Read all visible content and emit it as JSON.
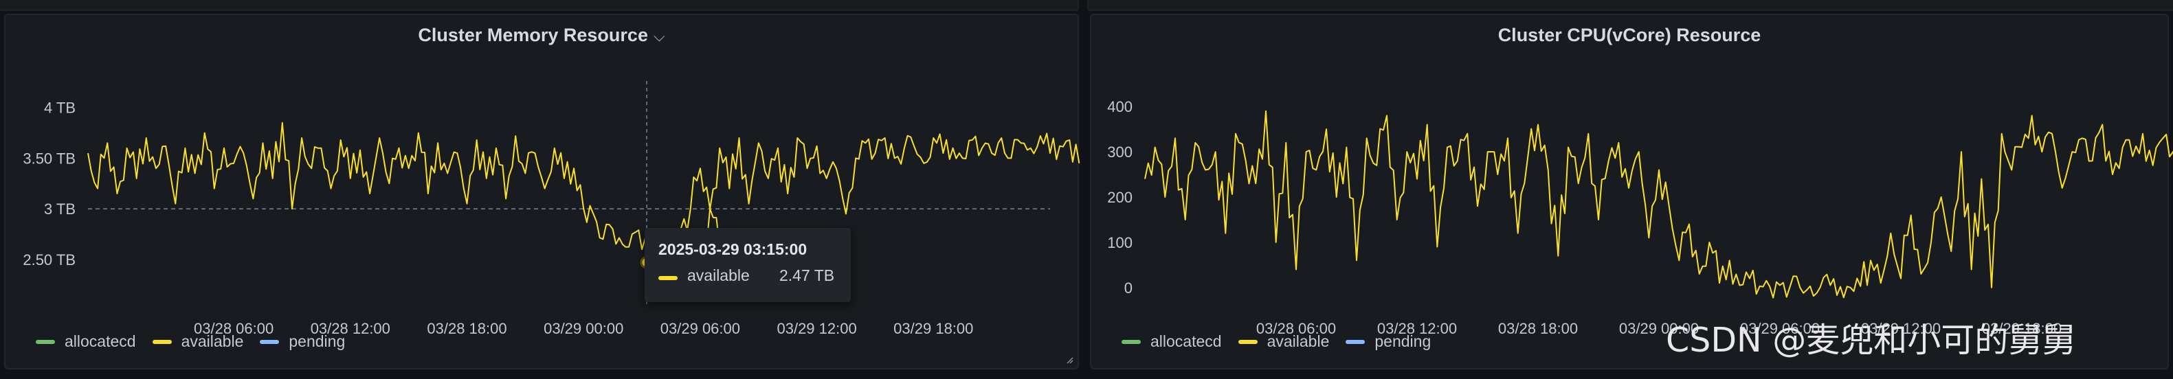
{
  "colors": {
    "allocated": "#73bf69",
    "available": "#fade2a",
    "pending": "#8ab8ff",
    "threshold": "#8aa4b8"
  },
  "watermark": "CSDN @麦兜和小可的舅舅",
  "chart_data": [
    {
      "type": "line",
      "title": "Cluster Memory Resource",
      "title_icon": "chevron-down-icon",
      "y_unit": "TB",
      "ylim": [
        2.2,
        4.1
      ],
      "yticks": [
        {
          "v": 2.5,
          "label": "2.50 TB"
        },
        {
          "v": 3.0,
          "label": "3 TB"
        },
        {
          "v": 3.5,
          "label": "3.50 TB"
        },
        {
          "v": 4.0,
          "label": "4 TB"
        }
      ],
      "threshold": 3.0,
      "x_range": [
        "2025-03-27 22:30",
        "2025-03-30 00:00"
      ],
      "xticks": [
        "03/28 06:00",
        "03/28 12:00",
        "03/28 18:00",
        "03/29 00:00",
        "03/29 06:00",
        "03/29 12:00",
        "03/29 18:00"
      ],
      "grid": false,
      "legend": [
        "allocatecd",
        "available",
        "pending"
      ],
      "legend_position": "bottom-left",
      "tooltip": {
        "time": "2025-03-29 03:15:00",
        "series": "available",
        "value": "2.47 TB",
        "value_num": 2.47
      },
      "series": [
        {
          "name": "available",
          "segments": [
            {
              "start": "2025-03-27 22:30",
              "step_minutes": 30,
              "values": [
                3.55,
                3.2,
                3.65,
                3.15,
                3.6,
                3.3,
                3.7,
                3.4,
                3.62,
                3.05,
                3.6,
                3.35,
                3.75,
                3.2,
                3.6,
                3.45,
                3.55,
                3.1,
                3.65,
                3.3,
                3.85,
                3.0,
                3.7,
                3.4,
                3.6,
                3.2,
                3.68,
                3.3,
                3.58,
                3.15,
                3.7,
                3.25,
                3.6,
                3.4,
                3.75,
                3.15,
                3.65,
                3.35,
                3.55,
                3.05,
                3.68,
                3.3,
                3.6,
                3.1,
                3.72,
                3.35,
                3.55,
                3.2,
                3.6,
                3.3,
                3.4,
                3.0,
                2.95,
                2.7,
                2.8,
                2.65,
                2.75,
                2.6,
                2.7,
                2.65,
                2.68,
                2.6,
                2.55,
                2.5,
                3.0,
                2.62
              ]
            },
            {
              "start": "2025-03-29 05:00",
              "step_minutes": 30,
              "values": [
                2.8,
                3.0,
                3.4,
                3.0,
                3.6,
                3.2,
                3.7,
                3.05,
                3.65,
                3.3,
                3.6,
                3.15,
                3.7,
                3.4,
                3.62,
                3.3,
                3.4,
                2.95,
                3.5,
                3.65,
                3.55,
                3.7,
                3.5,
                3.6,
                3.62,
                3.45,
                3.7,
                3.55,
                3.6,
                3.5,
                3.68,
                3.6,
                3.55,
                3.7,
                3.5,
                3.65,
                3.6,
                3.72,
                3.55,
                3.62,
                3.68,
                3.45
              ]
            }
          ]
        }
      ]
    },
    {
      "type": "line",
      "title": "Cluster CPU(vCore) Resource",
      "ylim": [
        -20,
        420
      ],
      "yticks": [
        {
          "v": 0,
          "label": "0"
        },
        {
          "v": 100,
          "label": "100"
        },
        {
          "v": 200,
          "label": "200"
        },
        {
          "v": 300,
          "label": "300"
        },
        {
          "v": 400,
          "label": "400"
        }
      ],
      "x_range": [
        "2025-03-27 22:30",
        "2025-03-30 00:00"
      ],
      "xticks": [
        "03/28 06:00",
        "03/28 12:00",
        "03/28 18:00",
        "03/29 00:00",
        "03/29 06:00",
        "03/29 12:00",
        "03/29 18:00"
      ],
      "grid": false,
      "legend": [
        "allocatecd",
        "available",
        "pending"
      ],
      "legend_position": "bottom-left",
      "series": [
        {
          "name": "available",
          "segments": [
            {
              "start": "2025-03-27 22:30",
              "step_minutes": 30,
              "values": [
                240,
                310,
                200,
                330,
                150,
                320,
                260,
                300,
                120,
                340,
                280,
                230,
                390,
                100,
                320,
                40,
                300,
                260,
                350,
                200,
                310,
                60,
                330,
                270,
                380,
                150,
                300,
                240,
                360,
                90,
                310,
                280,
                340,
                180,
                300,
                250,
                330,
                120,
                290,
                360,
                260,
                70,
                310,
                230,
                340,
                150,
                280,
                320,
                220,
                300,
                110,
                260,
                180,
                60,
                140,
                30,
                100,
                10,
                60,
                5,
                20,
                3,
                2,
                5,
                2,
                0,
                3,
                1,
                5,
                2,
                0,
                3,
                60,
                10,
                120,
                20,
                160,
                30,
                100,
                200,
                80,
                300,
                40,
                240,
                0,
                340,
                260,
                310,
                380,
                300,
                340,
                220,
                300,
                330,
                280,
                360,
                250,
                310,
                290,
                340,
                270,
                330,
                300,
                280,
                350,
                290,
                310,
                320,
                260,
                300,
                170
              ]
            }
          ]
        }
      ]
    }
  ]
}
